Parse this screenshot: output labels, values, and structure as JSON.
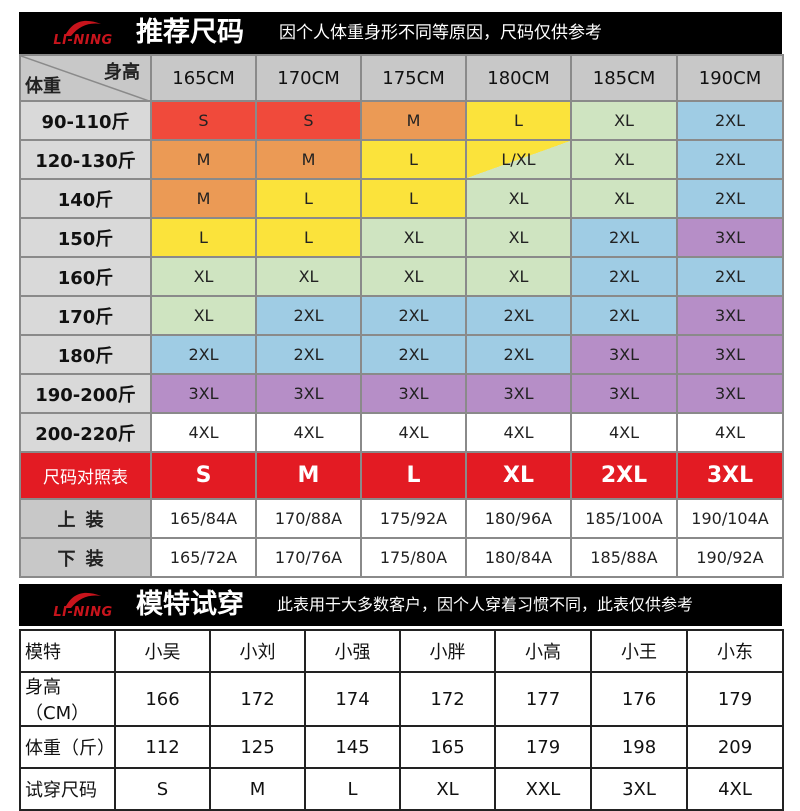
{
  "banner1": {
    "logo": "LI-NING",
    "title": "推荐尺码",
    "subtitle": "因个人体重身形不同等原因，尺码仅供参考"
  },
  "size_table": {
    "corner_height": "身高",
    "corner_weight": "体重",
    "heights": [
      "165CM",
      "170CM",
      "175CM",
      "180CM",
      "185CM",
      "190CM"
    ],
    "rows": [
      {
        "weight": "90-110斤",
        "sizes": [
          "S",
          "S",
          "M",
          "L",
          "XL",
          "2XL"
        ]
      },
      {
        "weight": "120-130斤",
        "sizes": [
          "M",
          "M",
          "L",
          "L/XL",
          "XL",
          "2XL"
        ]
      },
      {
        "weight": "140斤",
        "sizes": [
          "M",
          "L",
          "L",
          "XL",
          "XL",
          "2XL"
        ]
      },
      {
        "weight": "150斤",
        "sizes": [
          "L",
          "L",
          "XL",
          "XL",
          "2XL",
          "3XL"
        ]
      },
      {
        "weight": "160斤",
        "sizes": [
          "XL",
          "XL",
          "XL",
          "XL",
          "2XL",
          "2XL"
        ]
      },
      {
        "weight": "170斤",
        "sizes": [
          "XL",
          "2XL",
          "2XL",
          "2XL",
          "2XL",
          "3XL"
        ]
      },
      {
        "weight": "180斤",
        "sizes": [
          "2XL",
          "2XL",
          "2XL",
          "2XL",
          "3XL",
          "3XL"
        ]
      },
      {
        "weight": "190-200斤",
        "sizes": [
          "3XL",
          "3XL",
          "3XL",
          "3XL",
          "3XL",
          "3XL"
        ]
      },
      {
        "weight": "200-220斤",
        "sizes": [
          "4XL",
          "4XL",
          "4XL",
          "4XL",
          "4XL",
          "4XL"
        ]
      }
    ],
    "size_colors": {
      "S": "#f04a3b",
      "M": "#eb9a55",
      "L": "#fbe33b",
      "L/XL": "split",
      "XL": "#cfe4c1",
      "2XL": "#9fcce4",
      "3XL": "#b68ec7",
      "4XL": "#ffffff"
    },
    "comparison_label": "尺码对照表",
    "comparison_sizes": [
      "S",
      "M",
      "L",
      "XL",
      "2XL",
      "3XL"
    ],
    "top_label": "上装",
    "top_values": [
      "165/84A",
      "170/88A",
      "175/92A",
      "180/96A",
      "185/100A",
      "190/104A"
    ],
    "bottom_label": "下装",
    "bottom_values": [
      "165/72A",
      "170/76A",
      "175/80A",
      "180/84A",
      "185/88A",
      "190/92A"
    ]
  },
  "banner2": {
    "logo": "LI-NING",
    "title": "模特试穿",
    "subtitle": "此表用于大多数客户，因个人穿着习惯不同，此表仅供参考"
  },
  "model_table": {
    "header_label": "模特",
    "models": [
      "小吴",
      "小刘",
      "小强",
      "小胖",
      "小高",
      "小王",
      "小东"
    ],
    "height_label": "身高（CM）",
    "heights": [
      "166",
      "172",
      "174",
      "172",
      "177",
      "176",
      "179"
    ],
    "weight_label": "体重（斤）",
    "weights": [
      "112",
      "125",
      "145",
      "165",
      "179",
      "198",
      "209"
    ],
    "size_label": "试穿尺码",
    "sizes": [
      "S",
      "M",
      "L",
      "XL",
      "XXL",
      "3XL",
      "4XL"
    ]
  },
  "colors": {
    "brand_red": "#e31b23",
    "header_gray": "#c8c8c8"
  }
}
